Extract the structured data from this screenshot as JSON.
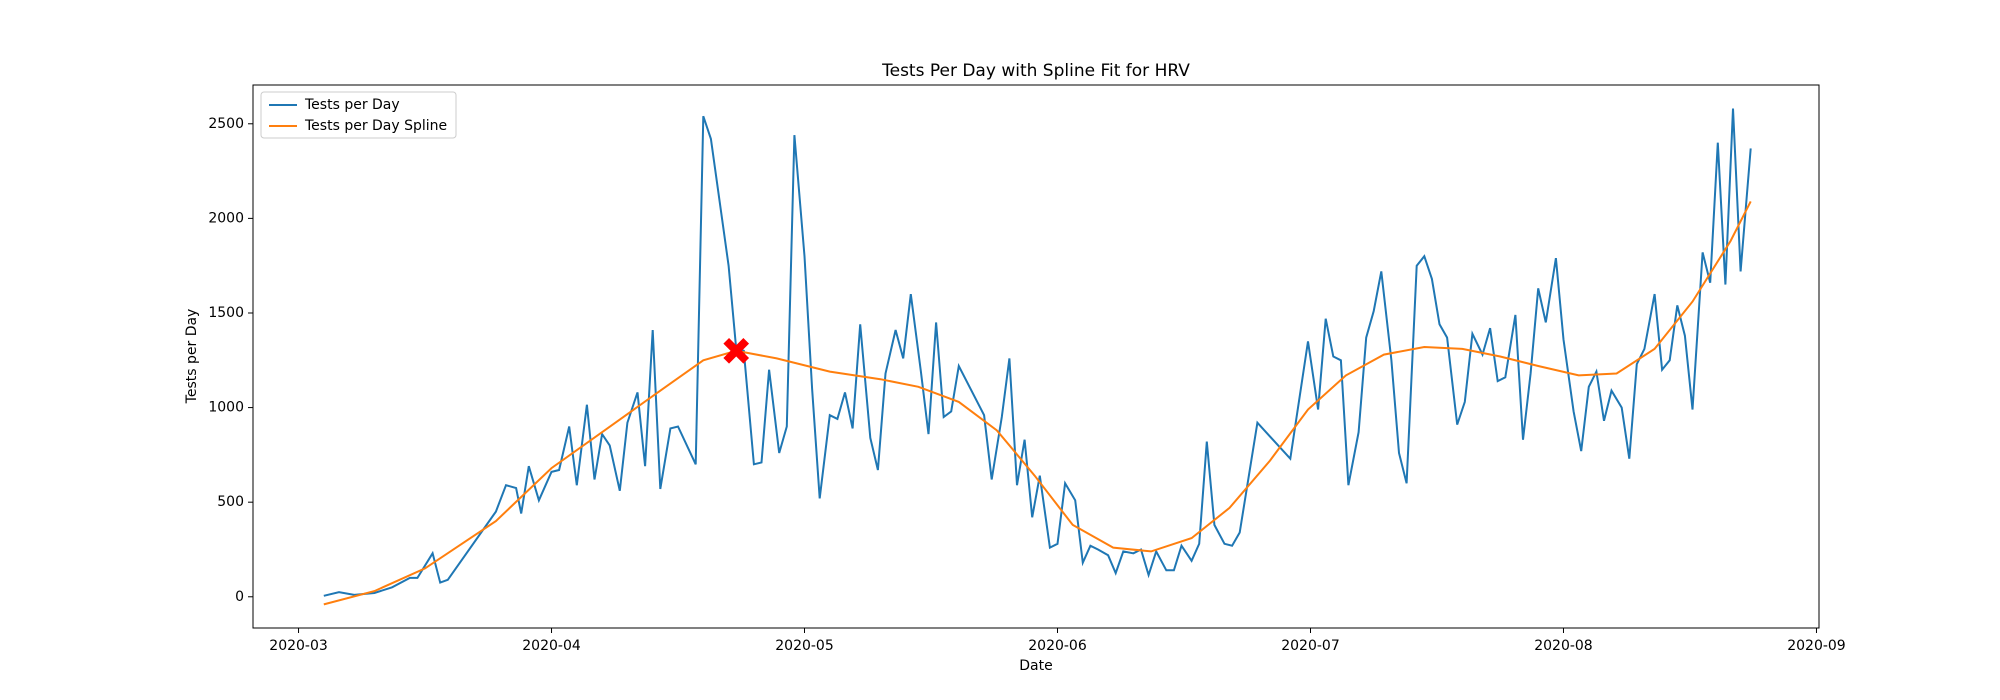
{
  "chart_data": {
    "type": "line",
    "title": "Tests Per Day with Spline Fit for HRV",
    "x_label": "Date",
    "y_label": "Tests per Day",
    "xlim": [
      2.82,
      9.01
    ],
    "ylim": [
      -165,
      2705
    ],
    "xticks": [
      {
        "value": 3,
        "label": "2020-03"
      },
      {
        "value": 4,
        "label": "2020-04"
      },
      {
        "value": 5,
        "label": "2020-05"
      },
      {
        "value": 6,
        "label": "2020-06"
      },
      {
        "value": 7,
        "label": "2020-07"
      },
      {
        "value": 8,
        "label": "2020-08"
      },
      {
        "value": 9,
        "label": "2020-09"
      }
    ],
    "yticks": [
      0,
      500,
      1000,
      1500,
      2000,
      2500
    ],
    "legend": "upper left",
    "series": [
      {
        "name": "Tests per Day",
        "color": "#1f77b4",
        "x": [
          3.1,
          3.16,
          3.22,
          3.3,
          3.37,
          3.44,
          3.47,
          3.53,
          3.56,
          3.59,
          3.78,
          3.82,
          3.86,
          3.88,
          3.91,
          3.95,
          4.0,
          4.03,
          4.07,
          4.1,
          4.14,
          4.17,
          4.2,
          4.23,
          4.27,
          4.3,
          4.34,
          4.37,
          4.4,
          4.43,
          4.47,
          4.5,
          4.57,
          4.6,
          4.63,
          4.7,
          4.73,
          4.76,
          4.8,
          4.83,
          4.86,
          4.9,
          4.93,
          4.96,
          5.0,
          5.03,
          5.06,
          5.1,
          5.13,
          5.16,
          5.19,
          5.22,
          5.26,
          5.29,
          5.32,
          5.36,
          5.39,
          5.42,
          5.46,
          5.49,
          5.52,
          5.55,
          5.58,
          5.61,
          5.71,
          5.74,
          5.78,
          5.81,
          5.84,
          5.87,
          5.9,
          5.93,
          5.97,
          6.0,
          6.03,
          6.07,
          6.1,
          6.13,
          6.16,
          6.2,
          6.23,
          6.26,
          6.3,
          6.33,
          6.36,
          6.39,
          6.43,
          6.46,
          6.49,
          6.53,
          6.56,
          6.59,
          6.62,
          6.66,
          6.69,
          6.72,
          6.79,
          6.92,
          6.99,
          7.03,
          7.06,
          7.09,
          7.12,
          7.15,
          7.19,
          7.22,
          7.25,
          7.28,
          7.32,
          7.35,
          7.38,
          7.42,
          7.45,
          7.48,
          7.51,
          7.54,
          7.58,
          7.61,
          7.64,
          7.68,
          7.71,
          7.74,
          7.77,
          7.81,
          7.84,
          7.87,
          7.9,
          7.93,
          7.97,
          8.0,
          8.04,
          8.07,
          8.1,
          8.13,
          8.16,
          8.19,
          8.23,
          8.26,
          8.29,
          8.32,
          8.36,
          8.39,
          8.42,
          8.45,
          8.48,
          8.51,
          8.55,
          8.58,
          8.61,
          8.64,
          8.67,
          8.7,
          8.74
        ],
        "values": [
          5,
          25,
          10,
          20,
          50,
          100,
          100,
          230,
          75,
          90,
          450,
          590,
          575,
          440,
          690,
          510,
          660,
          670,
          900,
          590,
          1015,
          620,
          860,
          800,
          560,
          920,
          1080,
          690,
          1410,
          570,
          890,
          900,
          700,
          2540,
          2420,
          1750,
          1310,
          1300,
          700,
          710,
          1200,
          760,
          900,
          2440,
          1800,
          1100,
          520,
          960,
          940,
          1080,
          890,
          1440,
          840,
          670,
          1180,
          1410,
          1260,
          1600,
          1190,
          860,
          1450,
          950,
          980,
          1220,
          960,
          620,
          950,
          1260,
          590,
          830,
          420,
          640,
          260,
          280,
          600,
          510,
          180,
          270,
          250,
          220,
          125,
          240,
          230,
          250,
          115,
          240,
          140,
          140,
          270,
          190,
          280,
          820,
          380,
          280,
          270,
          340,
          920,
          730,
          1350,
          990,
          1470,
          1270,
          1250,
          590,
          870,
          1370,
          1510,
          1720,
          1250,
          760,
          600,
          1750,
          1800,
          1680,
          1440,
          1370,
          910,
          1030,
          1390,
          1280,
          1420,
          1140,
          1160,
          1490,
          830,
          1180,
          1630,
          1450,
          1790,
          1360,
          980,
          770,
          1110,
          1190,
          930,
          1090,
          1000,
          730,
          1230,
          1310,
          1600,
          1200,
          1250,
          1540,
          1380,
          990,
          1820,
          1660,
          2400,
          1650,
          2580,
          1720,
          2370
        ]
      },
      {
        "name": "Tests per Day Spline",
        "color": "#ff7f0e",
        "x": [
          3.1,
          3.3,
          3.5,
          3.78,
          4.0,
          4.21,
          4.42,
          4.6,
          4.73,
          4.89,
          5.1,
          5.3,
          5.45,
          5.61,
          5.76,
          5.91,
          6.06,
          6.22,
          6.37,
          6.53,
          6.68,
          6.84,
          6.99,
          7.14,
          7.29,
          7.45,
          7.6,
          7.75,
          7.9,
          8.06,
          8.21,
          8.36,
          8.51,
          8.66,
          8.74
        ],
        "values": [
          -40,
          30,
          150,
          400,
          680,
          880,
          1080,
          1250,
          1300,
          1260,
          1190,
          1150,
          1110,
          1030,
          880,
          640,
          380,
          260,
          240,
          310,
          470,
          720,
          990,
          1170,
          1280,
          1320,
          1310,
          1270,
          1220,
          1170,
          1180,
          1310,
          1560,
          1880,
          2090
        ]
      }
    ],
    "marker": {
      "x": 4.73,
      "y": 1300,
      "color": "#ff0000"
    }
  }
}
